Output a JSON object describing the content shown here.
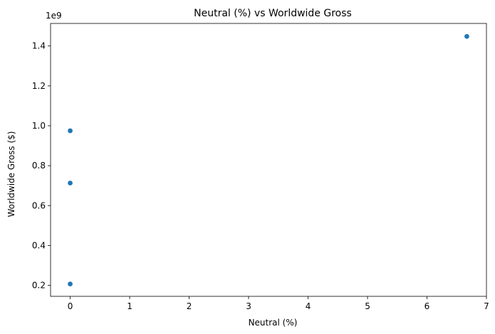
{
  "chart_data": {
    "type": "scatter",
    "title": "Neutral (%) vs Worldwide Gross",
    "xlabel": "Neutral (%)",
    "ylabel": "Worldwide Gross ($)",
    "y_scale_label": "1e9",
    "xlim": [
      -0.33,
      7.0
    ],
    "ylim": [
      0.145,
      1.513
    ],
    "y_scale": 1000000000,
    "x_ticks": [
      0,
      1,
      2,
      3,
      4,
      5,
      6,
      7
    ],
    "x_tick_labels": [
      "0",
      "1",
      "2",
      "3",
      "4",
      "5",
      "6",
      "7"
    ],
    "y_ticks": [
      0.2,
      0.4,
      0.6,
      0.8,
      1.0,
      1.2,
      1.4
    ],
    "y_tick_labels": [
      "0.2",
      "0.4",
      "0.6",
      "0.8",
      "1.0",
      "1.2",
      "1.4"
    ],
    "grid": false,
    "series": [
      {
        "points": [
          {
            "x": 0.0,
            "y": 0.975
          },
          {
            "x": 0.0,
            "y": 0.713
          },
          {
            "x": 0.0,
            "y": 0.207
          },
          {
            "x": 6.67,
            "y": 1.448
          }
        ],
        "color": "#1f77b4"
      }
    ]
  }
}
